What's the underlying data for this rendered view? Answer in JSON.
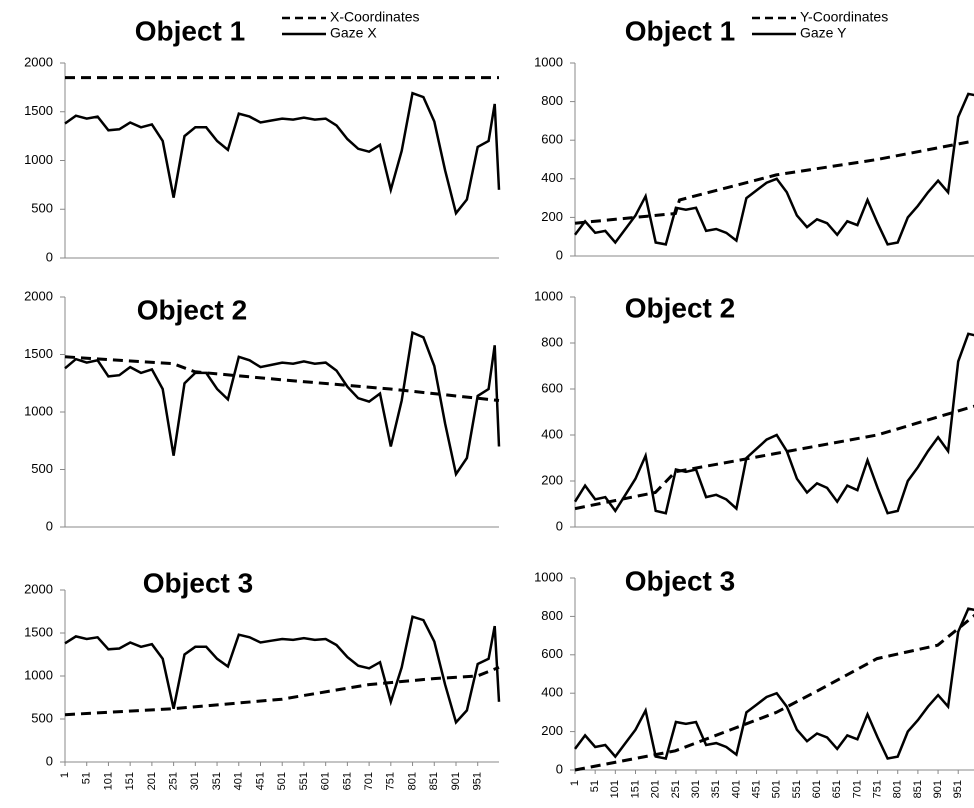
{
  "chart_data": [
    {
      "type": "line",
      "title": "Object 1",
      "ylim": [
        0,
        2000
      ],
      "yticks": [
        0,
        500,
        1000,
        1500,
        2000
      ],
      "xlim": [
        1,
        1000
      ],
      "legend": "top-right",
      "series": [
        {
          "name": "X-Coordinates",
          "color": "#000",
          "style": "dashed",
          "x": [
            1,
            1000
          ],
          "values": [
            1850,
            1850
          ]
        },
        {
          "name": "Gaze X",
          "color": "#000",
          "style": "solid",
          "x": [
            1,
            26,
            51,
            76,
            101,
            126,
            151,
            176,
            201,
            226,
            251,
            276,
            301,
            326,
            351,
            376,
            401,
            426,
            451,
            476,
            501,
            526,
            551,
            576,
            601,
            626,
            651,
            676,
            701,
            726,
            751,
            776,
            801,
            826,
            851,
            876,
            901,
            926,
            951,
            976,
            990,
            1000
          ],
          "values": [
            1380,
            1460,
            1430,
            1450,
            1310,
            1320,
            1390,
            1340,
            1370,
            1200,
            620,
            1250,
            1340,
            1340,
            1200,
            1110,
            1480,
            1450,
            1390,
            1410,
            1430,
            1420,
            1440,
            1420,
            1430,
            1360,
            1220,
            1120,
            1090,
            1160,
            700,
            1100,
            1690,
            1650,
            1400,
            900,
            460,
            600,
            1140,
            1200,
            1580,
            700
          ]
        }
      ]
    },
    {
      "type": "line",
      "title": "Object 1",
      "ylim": [
        0,
        1000
      ],
      "yticks": [
        0,
        200,
        400,
        600,
        800,
        1000
      ],
      "xlim": [
        1,
        1000
      ],
      "legend": "top-right",
      "series": [
        {
          "name": "Y-Coordinates",
          "color": "#000",
          "style": "dashed",
          "x": [
            1,
            250,
            260,
            500,
            750,
            1000
          ],
          "values": [
            170,
            220,
            290,
            420,
            500,
            600
          ]
        },
        {
          "name": "Gaze Y",
          "color": "#000",
          "style": "solid",
          "x": [
            1,
            26,
            51,
            76,
            101,
            126,
            151,
            176,
            201,
            226,
            251,
            276,
            301,
            326,
            351,
            376,
            401,
            426,
            451,
            476,
            501,
            526,
            551,
            576,
            601,
            626,
            651,
            676,
            701,
            726,
            751,
            776,
            801,
            826,
            851,
            876,
            901,
            926,
            951,
            976,
            1000
          ],
          "values": [
            110,
            180,
            120,
            130,
            70,
            140,
            210,
            310,
            70,
            60,
            250,
            240,
            250,
            130,
            140,
            120,
            80,
            300,
            340,
            380,
            400,
            330,
            210,
            150,
            190,
            170,
            110,
            180,
            160,
            290,
            170,
            60,
            70,
            200,
            260,
            330,
            390,
            330,
            720,
            840,
            830
          ]
        }
      ]
    },
    {
      "type": "line",
      "title": "Object 2",
      "ylim": [
        0,
        2000
      ],
      "yticks": [
        0,
        500,
        1000,
        1500,
        2000
      ],
      "xlim": [
        1,
        1000
      ],
      "series": [
        {
          "color": "#000",
          "style": "dashed",
          "x": [
            1,
            250,
            300,
            500,
            750,
            1000
          ],
          "values": [
            1480,
            1420,
            1350,
            1280,
            1200,
            1100
          ]
        },
        {
          "color": "#000",
          "style": "solid",
          "x": [
            1,
            26,
            51,
            76,
            101,
            126,
            151,
            176,
            201,
            226,
            251,
            276,
            301,
            326,
            351,
            376,
            401,
            426,
            451,
            476,
            501,
            526,
            551,
            576,
            601,
            626,
            651,
            676,
            701,
            726,
            751,
            776,
            801,
            826,
            851,
            876,
            901,
            926,
            951,
            976,
            990,
            1000
          ],
          "values": [
            1380,
            1460,
            1430,
            1450,
            1310,
            1320,
            1390,
            1340,
            1370,
            1200,
            620,
            1250,
            1340,
            1340,
            1200,
            1110,
            1480,
            1450,
            1390,
            1410,
            1430,
            1420,
            1440,
            1420,
            1430,
            1360,
            1220,
            1120,
            1090,
            1160,
            700,
            1100,
            1690,
            1650,
            1400,
            900,
            460,
            600,
            1140,
            1200,
            1580,
            700
          ]
        }
      ]
    },
    {
      "type": "line",
      "title": "Object 2",
      "ylim": [
        0,
        1000
      ],
      "yticks": [
        0,
        200,
        400,
        600,
        800,
        1000
      ],
      "xlim": [
        1,
        1000
      ],
      "series": [
        {
          "color": "#000",
          "style": "dashed",
          "x": [
            1,
            200,
            250,
            500,
            750,
            1000
          ],
          "values": [
            80,
            150,
            240,
            320,
            400,
            530
          ]
        },
        {
          "color": "#000",
          "style": "solid",
          "x": [
            1,
            26,
            51,
            76,
            101,
            126,
            151,
            176,
            201,
            226,
            251,
            276,
            301,
            326,
            351,
            376,
            401,
            426,
            451,
            476,
            501,
            526,
            551,
            576,
            601,
            626,
            651,
            676,
            701,
            726,
            751,
            776,
            801,
            826,
            851,
            876,
            901,
            926,
            951,
            976,
            1000
          ],
          "values": [
            110,
            180,
            120,
            130,
            70,
            140,
            210,
            310,
            70,
            60,
            250,
            240,
            250,
            130,
            140,
            120,
            80,
            300,
            340,
            380,
            400,
            330,
            210,
            150,
            190,
            170,
            110,
            180,
            160,
            290,
            170,
            60,
            70,
            200,
            260,
            330,
            390,
            330,
            720,
            840,
            830
          ]
        }
      ]
    },
    {
      "type": "line",
      "title": "Object 3",
      "ylim": [
        0,
        2000
      ],
      "yticks": [
        0,
        500,
        1000,
        1500,
        2000
      ],
      "xlim": [
        1,
        1000
      ],
      "xticks": [
        1,
        51,
        101,
        151,
        201,
        251,
        301,
        351,
        401,
        451,
        501,
        551,
        601,
        651,
        701,
        751,
        801,
        851,
        901,
        951
      ],
      "series": [
        {
          "color": "#000",
          "style": "dashed",
          "x": [
            1,
            250,
            500,
            700,
            850,
            950,
            1000
          ],
          "values": [
            550,
            620,
            730,
            900,
            970,
            1000,
            1100
          ]
        },
        {
          "color": "#000",
          "style": "solid",
          "x": [
            1,
            26,
            51,
            76,
            101,
            126,
            151,
            176,
            201,
            226,
            251,
            276,
            301,
            326,
            351,
            376,
            401,
            426,
            451,
            476,
            501,
            526,
            551,
            576,
            601,
            626,
            651,
            676,
            701,
            726,
            751,
            776,
            801,
            826,
            851,
            876,
            901,
            926,
            951,
            976,
            990,
            1000
          ],
          "values": [
            1380,
            1460,
            1430,
            1450,
            1310,
            1320,
            1390,
            1340,
            1370,
            1200,
            620,
            1250,
            1340,
            1340,
            1200,
            1110,
            1480,
            1450,
            1390,
            1410,
            1430,
            1420,
            1440,
            1420,
            1430,
            1360,
            1220,
            1120,
            1090,
            1160,
            700,
            1100,
            1690,
            1650,
            1400,
            900,
            460,
            600,
            1140,
            1200,
            1580,
            700
          ]
        }
      ]
    },
    {
      "type": "line",
      "title": "Object 3",
      "ylim": [
        0,
        1000
      ],
      "yticks": [
        0,
        200,
        400,
        600,
        800,
        1000
      ],
      "xlim": [
        1,
        1000
      ],
      "xticks": [
        1,
        51,
        101,
        151,
        201,
        251,
        301,
        351,
        401,
        451,
        501,
        551,
        601,
        651,
        701,
        751,
        801,
        851,
        901,
        951
      ],
      "series": [
        {
          "color": "#000",
          "style": "dashed",
          "x": [
            1,
            250,
            500,
            600,
            750,
            900,
            1000
          ],
          "values": [
            0,
            100,
            300,
            410,
            580,
            650,
            820
          ]
        },
        {
          "color": "#000",
          "style": "solid",
          "x": [
            1,
            26,
            51,
            76,
            101,
            126,
            151,
            176,
            201,
            226,
            251,
            276,
            301,
            326,
            351,
            376,
            401,
            426,
            451,
            476,
            501,
            526,
            551,
            576,
            601,
            626,
            651,
            676,
            701,
            726,
            751,
            776,
            801,
            826,
            851,
            876,
            901,
            926,
            951,
            976,
            1000
          ],
          "values": [
            110,
            180,
            120,
            130,
            70,
            140,
            210,
            310,
            70,
            60,
            250,
            240,
            250,
            130,
            140,
            120,
            80,
            300,
            340,
            380,
            400,
            330,
            210,
            150,
            190,
            170,
            110,
            180,
            160,
            290,
            170,
            60,
            70,
            200,
            260,
            330,
            390,
            330,
            720,
            840,
            830
          ]
        }
      ]
    }
  ]
}
